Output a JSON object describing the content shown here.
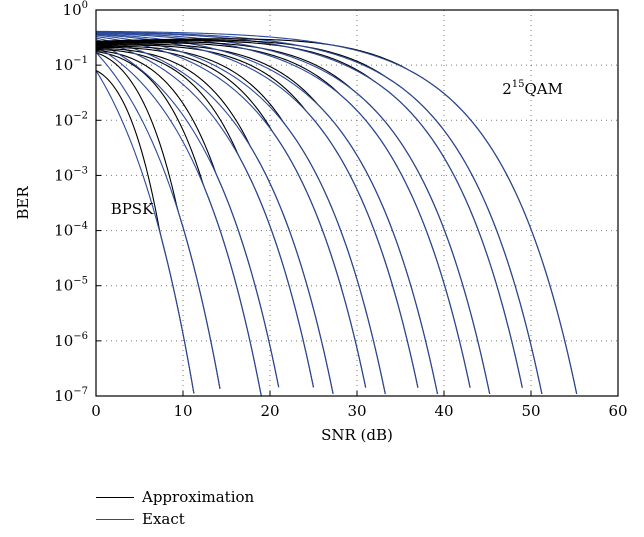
{
  "chart_data": {
    "type": "line",
    "xlabel": "SNR (dB)",
    "ylabel": "BER",
    "xlim": [
      0,
      60
    ],
    "ylim": [
      1e-07,
      1
    ],
    "y_scale": "log",
    "grid": "dotted",
    "x_ticks": [
      0,
      10,
      20,
      30,
      40,
      50,
      60
    ],
    "y_ticks": [
      {
        "value": 1,
        "base": "10",
        "exp": "0"
      },
      {
        "value": 0.1,
        "base": "10",
        "exp": "−1"
      },
      {
        "value": 0.01,
        "base": "10",
        "exp": "−2"
      },
      {
        "value": 0.001,
        "base": "10",
        "exp": "−3"
      },
      {
        "value": 0.0001,
        "base": "10",
        "exp": "−4"
      },
      {
        "value": 1e-05,
        "base": "10",
        "exp": "−5"
      },
      {
        "value": 1e-06,
        "base": "10",
        "exp": "−6"
      },
      {
        "value": 1e-07,
        "base": "10",
        "exp": "−7"
      }
    ],
    "legend": {
      "placement": "bottom-left",
      "entries": [
        {
          "name": "Approximation",
          "color": "#000000"
        },
        {
          "name": "Exact",
          "color": "#2b4a9b"
        }
      ]
    },
    "annotations": [
      {
        "text": "BPSK",
        "x": 1,
        "y": 0.0002
      },
      {
        "base": "2",
        "exp": "15",
        "rest": "QAM",
        "x": 46,
        "y": 0.03
      }
    ],
    "curves": [
      {
        "b": 1,
        "start": 0.08,
        "end_snr": 11.3
      },
      {
        "b": 2,
        "start": 0.17,
        "end_snr": 14.4
      },
      {
        "b": 3,
        "start": 0.22,
        "end_snr": 19.0
      },
      {
        "b": 4,
        "start": 0.26,
        "end_snr": 21.2
      },
      {
        "b": 5,
        "start": 0.29,
        "end_snr": 25.2
      },
      {
        "b": 6,
        "start": 0.31,
        "end_snr": 27.3
      },
      {
        "b": 7,
        "start": 0.33,
        "end_snr": 31.2
      },
      {
        "b": 8,
        "start": 0.35,
        "end_snr": 33.3
      },
      {
        "b": 9,
        "start": 0.36,
        "end_snr": 37.2
      },
      {
        "b": 10,
        "start": 0.37,
        "end_snr": 39.3
      },
      {
        "b": 11,
        "start": 0.38,
        "end_snr": 43.2
      },
      {
        "b": 12,
        "start": 0.39,
        "end_snr": 45.3
      },
      {
        "b": 13,
        "start": 0.395,
        "end_snr": 49.2
      },
      {
        "b": 14,
        "start": 0.4,
        "end_snr": 51.3
      },
      {
        "b": 15,
        "start": 0.41,
        "end_snr": 55.3
      }
    ],
    "approx_start_level": 0.16
  }
}
